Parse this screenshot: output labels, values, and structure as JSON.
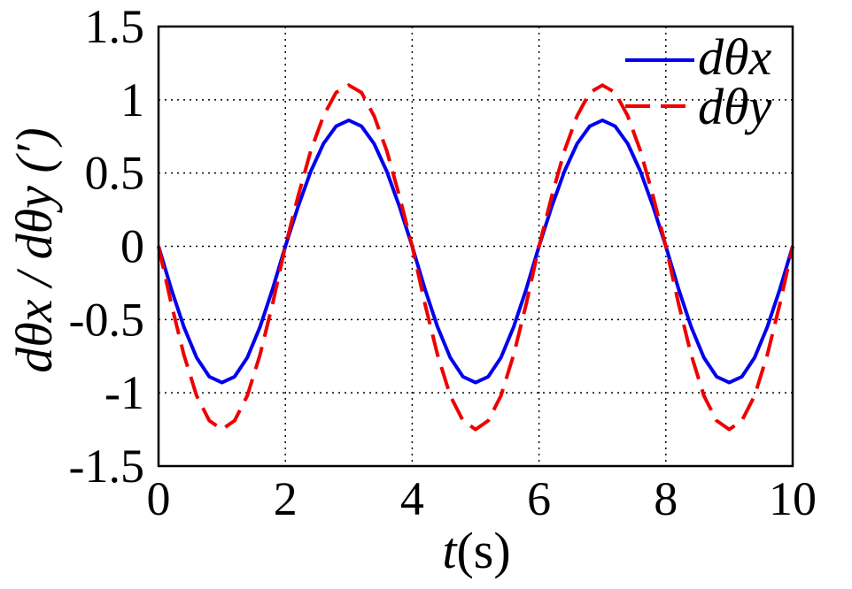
{
  "chart_data": {
    "type": "line",
    "xlabel_var": "t",
    "xlabel_unit": "(s)",
    "ylabel": "dθx / dθy (′)",
    "xlim": [
      0,
      10
    ],
    "ylim": [
      -1.5,
      1.5
    ],
    "xticks": [
      "0",
      "2",
      "4",
      "6",
      "8",
      "10"
    ],
    "xtick_values": [
      0,
      2,
      4,
      6,
      8,
      10
    ],
    "yticks": [
      "1.5",
      "1",
      "0.5",
      "0",
      "-0.5",
      "-1",
      "-1.5"
    ],
    "ytick_values": [
      1.5,
      1,
      0.5,
      0,
      -0.5,
      -1,
      -1.5
    ],
    "grid": true,
    "legend_position": "top-right",
    "x": [
      0,
      0.2,
      0.4,
      0.6,
      0.8,
      1.0,
      1.2,
      1.4,
      1.6,
      1.8,
      2.0,
      2.2,
      2.4,
      2.6,
      2.8,
      3.0,
      3.2,
      3.4,
      3.6,
      3.8,
      4.0,
      4.2,
      4.4,
      4.6,
      4.8,
      5.0,
      5.2,
      5.4,
      5.6,
      5.8,
      6.0,
      6.2,
      6.4,
      6.6,
      6.8,
      7.0,
      7.2,
      7.4,
      7.6,
      7.8,
      8.0,
      8.2,
      8.4,
      8.6,
      8.8,
      9.0,
      9.2,
      9.4,
      9.6,
      9.8,
      10.0
    ],
    "series": [
      {
        "name": "dθx",
        "color": "#0000ee",
        "style": "solid",
        "values": [
          0,
          -0.29,
          -0.55,
          -0.76,
          -0.89,
          -0.93,
          -0.89,
          -0.76,
          -0.55,
          -0.29,
          0,
          0.27,
          0.51,
          0.7,
          0.82,
          0.86,
          0.82,
          0.7,
          0.51,
          0.27,
          0,
          -0.29,
          -0.55,
          -0.76,
          -0.89,
          -0.93,
          -0.89,
          -0.76,
          -0.55,
          -0.29,
          0,
          0.27,
          0.51,
          0.7,
          0.82,
          0.86,
          0.82,
          0.7,
          0.51,
          0.27,
          0,
          -0.29,
          -0.55,
          -0.76,
          -0.89,
          -0.93,
          -0.89,
          -0.76,
          -0.55,
          -0.29,
          0
        ]
      },
      {
        "name": "dθy",
        "color": "#ee0000",
        "style": "dashed",
        "values": [
          0,
          -0.39,
          -0.74,
          -1.02,
          -1.19,
          -1.25,
          -1.19,
          -1.02,
          -0.74,
          -0.39,
          0,
          0.34,
          0.65,
          0.89,
          1.05,
          1.1,
          1.05,
          0.89,
          0.65,
          0.34,
          0,
          -0.39,
          -0.74,
          -1.02,
          -1.19,
          -1.25,
          -1.19,
          -1.02,
          -0.74,
          -0.39,
          0,
          0.34,
          0.65,
          0.89,
          1.05,
          1.1,
          1.05,
          0.89,
          0.65,
          0.34,
          0,
          -0.39,
          -0.74,
          -1.02,
          -1.19,
          -1.25,
          -1.19,
          -1.02,
          -0.74,
          -0.39,
          0
        ]
      }
    ]
  }
}
